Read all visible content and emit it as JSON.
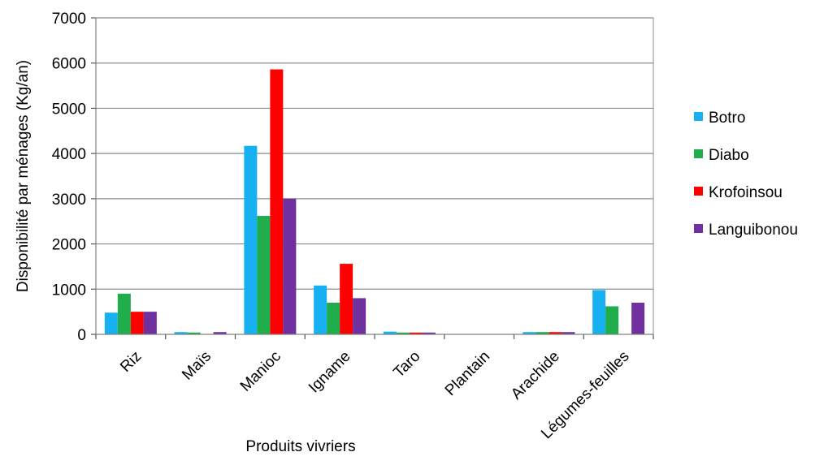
{
  "chart_data": {
    "type": "bar",
    "xlabel": "Produits vivriers",
    "ylabel": "Disponibilité par ménages (Kg/an)",
    "ylim": [
      0,
      7000
    ],
    "yticks": [
      0,
      1000,
      2000,
      3000,
      4000,
      5000,
      6000,
      7000
    ],
    "grid": true,
    "legend_position": "right",
    "categories": [
      "Riz",
      "Maïs",
      "Manioc",
      "Igname",
      "Taro",
      "Plantain",
      "Arachide",
      "Légumes-feuilles"
    ],
    "series": [
      {
        "name": "Botro",
        "color": "#17b0f0",
        "values": [
          480,
          50,
          4170,
          1080,
          60,
          0,
          50,
          980
        ]
      },
      {
        "name": "Diabo",
        "color": "#1fae4b",
        "values": [
          900,
          40,
          2620,
          700,
          40,
          0,
          50,
          620
        ]
      },
      {
        "name": "Krofoinsou",
        "color": "#ff0000",
        "values": [
          500,
          0,
          5860,
          1560,
          40,
          0,
          50,
          0
        ]
      },
      {
        "name": "Languibonou",
        "color": "#7030a0",
        "values": [
          500,
          50,
          3000,
          800,
          40,
          0,
          50,
          700
        ]
      }
    ]
  }
}
